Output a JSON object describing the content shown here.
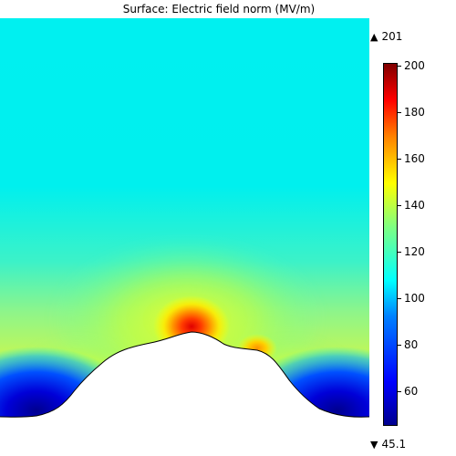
{
  "chart_data": {
    "type": "heatmap",
    "title": "Surface: Electric field norm (MV/m)",
    "max_value": 201,
    "min_value": 45.1,
    "max_label": "201",
    "min_label": "45.1",
    "colorbar": {
      "range": [
        45.1,
        201
      ],
      "ticks": [
        {
          "value": 60,
          "label": "60"
        },
        {
          "value": 80,
          "label": "80"
        },
        {
          "value": 100,
          "label": "100"
        },
        {
          "value": 120,
          "label": "120"
        },
        {
          "value": 140,
          "label": "140"
        },
        {
          "value": 160,
          "label": "160"
        },
        {
          "value": 180,
          "label": "180"
        },
        {
          "value": 200,
          "label": "200"
        }
      ],
      "colormap": "jet"
    }
  },
  "icons": {
    "max": "up-triangle-icon",
    "min": "down-triangle-icon"
  }
}
